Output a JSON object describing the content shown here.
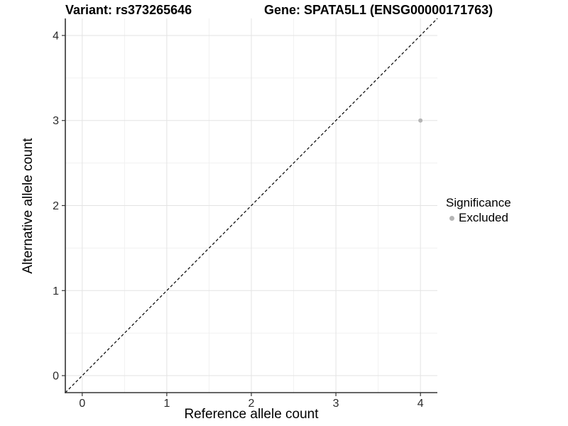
{
  "titles": {
    "variant": "Variant: rs373265646",
    "gene": "Gene: SPATA5L1 (ENSG00000171763)"
  },
  "chart_data": {
    "type": "scatter",
    "title": "Variant: rs373265646    Gene: SPATA5L1 (ENSG00000171763)",
    "xlabel": "Reference allele count",
    "ylabel": "Alternative allele count",
    "xlim": [
      -0.2,
      4.2
    ],
    "ylim": [
      -0.2,
      4.2
    ],
    "x_ticks": [
      0,
      1,
      2,
      3,
      4
    ],
    "y_ticks": [
      0,
      1,
      2,
      3,
      4
    ],
    "x_minor_ticks": [
      0.5,
      1.5,
      2.5,
      3.5
    ],
    "y_minor_ticks": [
      0.5,
      1.5,
      2.5,
      3.5
    ],
    "grid": true,
    "points": [
      {
        "x": 4,
        "y": 3,
        "series": "Excluded"
      }
    ],
    "reference_line": {
      "type": "identity",
      "style": "dashed",
      "from": [
        -0.2,
        -0.2
      ],
      "to": [
        4.2,
        4.2
      ]
    },
    "legend": {
      "title": "Significance",
      "position": "right",
      "items": [
        {
          "label": "Excluded",
          "color": "#b5b5b5"
        }
      ]
    },
    "colors": {
      "point": "#b5b5b5",
      "grid_major": "#e3e3e3",
      "grid_minor": "#f1f1f1",
      "axis_line": "#333333",
      "tick_mark": "#333333",
      "tick_label": "#2b2b2b",
      "dashed_line": "#000000",
      "background": "#ffffff"
    }
  }
}
